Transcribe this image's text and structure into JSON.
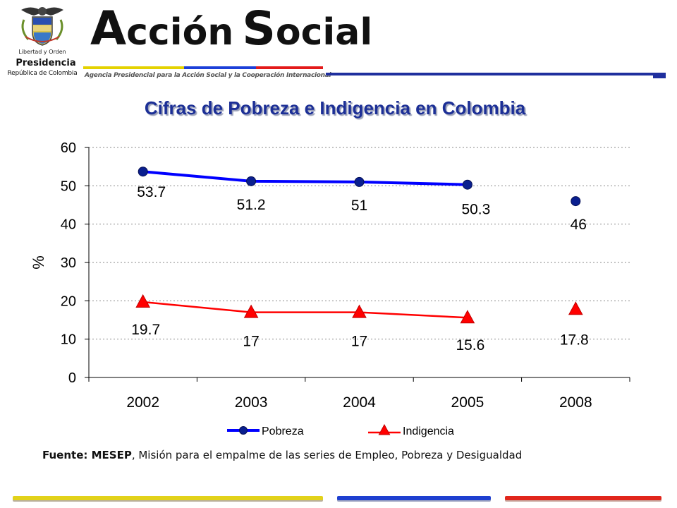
{
  "header": {
    "seal_text": "Libertad y Orden",
    "presidencia": "Presidencia",
    "republica": "República de Colombia",
    "brand_a": "A",
    "brand_ccion": "cción",
    "brand_s": "S",
    "brand_ocial": "ocial",
    "agency": "Agencia Presidencial para la Acción Social y la Cooperación Internacional"
  },
  "footer": {
    "source_bold": "Fuente: MESEP",
    "source_rest": ", Misión para el empalme de las series de Empleo, Pobreza y Desigualdad"
  },
  "colors": {
    "title": "#1c2f96",
    "pobreza": "#0000ff",
    "pobreza_marker": "#0a1f8f",
    "indigencia": "#ff0000",
    "footer_yellow": "#e2d21a",
    "footer_blue": "#1e3fd0",
    "footer_red": "#e1261c"
  },
  "chart_data": {
    "type": "line",
    "title": "Cifras de Pobreza e Indigencia en Colombia",
    "xlabel": "",
    "ylabel": "%",
    "categories": [
      "2002",
      "2003",
      "2004",
      "2005",
      "2008"
    ],
    "ylim": [
      0,
      60
    ],
    "yticks": [
      0,
      10,
      20,
      30,
      40,
      50,
      60
    ],
    "grid": "horizontal dotted",
    "legend": "bottom",
    "series": [
      {
        "name": "Pobreza",
        "values": [
          53.7,
          51.2,
          51,
          50.3,
          46
        ],
        "labels": [
          "53.7",
          "51.2",
          "51",
          "50.3",
          "46"
        ],
        "marker": "circle",
        "connected_through": 3
      },
      {
        "name": "Indigencia",
        "values": [
          19.7,
          17,
          17,
          15.6,
          17.8
        ],
        "labels": [
          "19.7",
          "17",
          "17",
          "15.6",
          "17.8"
        ],
        "marker": "triangle",
        "connected_through": 3
      }
    ]
  }
}
